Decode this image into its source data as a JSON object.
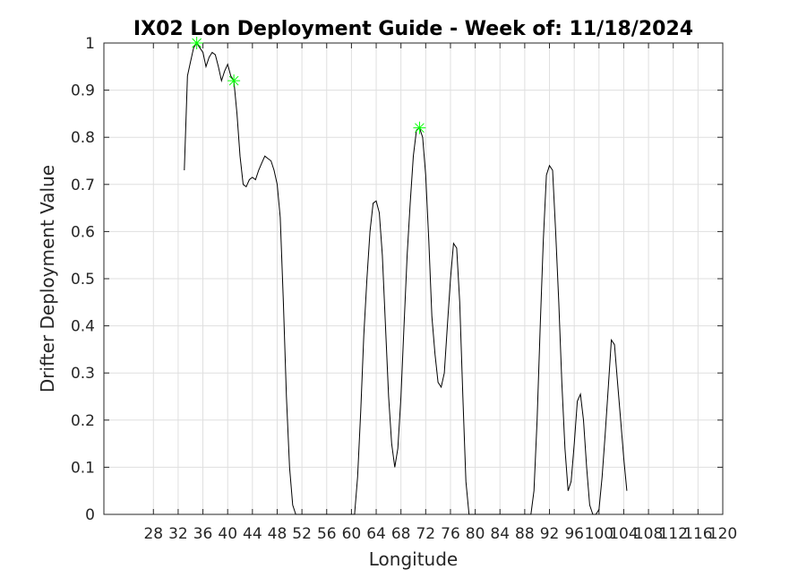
{
  "chart_data": {
    "type": "line",
    "title": "IX02 Lon Deployment Guide - Week of: 11/18/2024",
    "xlabel": "Longitude",
    "ylabel": "Drifter Deployment Value",
    "xlim": [
      20,
      120
    ],
    "ylim": [
      0,
      1
    ],
    "grid": true,
    "xticks": [
      28,
      32,
      36,
      40,
      44,
      48,
      52,
      56,
      60,
      64,
      68,
      72,
      76,
      80,
      84,
      88,
      92,
      96,
      100,
      104,
      108,
      112,
      116,
      120
    ],
    "xtick_labels": [
      "28",
      "32",
      "36",
      "40",
      "44",
      "48",
      "52",
      "56",
      "60",
      "64",
      "68",
      "72",
      "76",
      "80",
      "84",
      "88",
      "92",
      "96",
      "100",
      "104",
      "108",
      "112",
      "116",
      "120"
    ],
    "yticks": [
      0,
      0.1,
      0.2,
      0.3,
      0.4,
      0.5,
      0.6,
      0.7,
      0.8,
      0.9,
      1
    ],
    "ytick_labels": [
      "0",
      "0.1",
      "0.2",
      "0.3",
      "0.4",
      "0.5",
      "0.6",
      "0.7",
      "0.8",
      "0.9",
      "1"
    ],
    "line_color": "#000000",
    "marker_color": "#00ff00",
    "series": [
      {
        "values": [
          [
            33.0,
            0.73
          ],
          [
            33.5,
            0.93
          ],
          [
            34.0,
            0.96
          ],
          [
            34.5,
            0.99
          ],
          [
            35.0,
            1.0
          ],
          [
            35.5,
            0.99
          ],
          [
            36.0,
            0.98
          ],
          [
            36.5,
            0.95
          ],
          [
            37.0,
            0.97
          ],
          [
            37.5,
            0.98
          ],
          [
            38.0,
            0.975
          ],
          [
            38.5,
            0.95
          ],
          [
            39.0,
            0.92
          ],
          [
            39.5,
            0.94
          ],
          [
            40.0,
            0.955
          ],
          [
            40.5,
            0.93
          ],
          [
            41.0,
            0.92
          ],
          [
            41.5,
            0.85
          ],
          [
            42.0,
            0.76
          ],
          [
            42.5,
            0.7
          ],
          [
            43.0,
            0.695
          ],
          [
            43.5,
            0.71
          ],
          [
            44.0,
            0.715
          ],
          [
            44.5,
            0.71
          ],
          [
            45.0,
            0.73
          ],
          [
            45.5,
            0.745
          ],
          [
            46.0,
            0.76
          ],
          [
            46.5,
            0.755
          ],
          [
            47.0,
            0.75
          ],
          [
            47.5,
            0.73
          ],
          [
            48.0,
            0.7
          ],
          [
            48.5,
            0.63
          ],
          [
            49.0,
            0.45
          ],
          [
            49.5,
            0.25
          ],
          [
            50.0,
            0.1
          ],
          [
            50.5,
            0.02
          ],
          [
            51.0,
            0.0
          ],
          [
            52.0,
            0.0
          ],
          [
            56.0,
            0.0
          ],
          [
            60.0,
            0.0
          ],
          [
            60.5,
            0.0
          ],
          [
            61.0,
            0.08
          ],
          [
            61.5,
            0.22
          ],
          [
            62.0,
            0.38
          ],
          [
            62.5,
            0.5
          ],
          [
            63.0,
            0.6
          ],
          [
            63.5,
            0.66
          ],
          [
            64.0,
            0.665
          ],
          [
            64.5,
            0.64
          ],
          [
            65.0,
            0.55
          ],
          [
            65.5,
            0.4
          ],
          [
            66.0,
            0.25
          ],
          [
            66.5,
            0.15
          ],
          [
            67.0,
            0.1
          ],
          [
            67.5,
            0.14
          ],
          [
            68.0,
            0.25
          ],
          [
            68.5,
            0.4
          ],
          [
            69.0,
            0.55
          ],
          [
            69.5,
            0.66
          ],
          [
            70.0,
            0.76
          ],
          [
            70.5,
            0.815
          ],
          [
            71.0,
            0.82
          ],
          [
            71.5,
            0.8
          ],
          [
            72.0,
            0.72
          ],
          [
            72.5,
            0.58
          ],
          [
            73.0,
            0.42
          ],
          [
            73.5,
            0.34
          ],
          [
            74.0,
            0.28
          ],
          [
            74.5,
            0.27
          ],
          [
            75.0,
            0.3
          ],
          [
            75.5,
            0.4
          ],
          [
            76.0,
            0.5
          ],
          [
            76.5,
            0.575
          ],
          [
            77.0,
            0.565
          ],
          [
            77.5,
            0.45
          ],
          [
            78.0,
            0.25
          ],
          [
            78.5,
            0.07
          ],
          [
            79.0,
            0.0
          ],
          [
            80.0,
            0.0
          ],
          [
            84.0,
            0.0
          ],
          [
            88.0,
            0.0
          ],
          [
            89.0,
            0.0
          ],
          [
            89.5,
            0.05
          ],
          [
            90.0,
            0.2
          ],
          [
            90.5,
            0.4
          ],
          [
            91.0,
            0.58
          ],
          [
            91.5,
            0.72
          ],
          [
            92.0,
            0.74
          ],
          [
            92.5,
            0.73
          ],
          [
            93.0,
            0.6
          ],
          [
            93.5,
            0.45
          ],
          [
            94.0,
            0.28
          ],
          [
            94.5,
            0.14
          ],
          [
            95.0,
            0.05
          ],
          [
            95.5,
            0.07
          ],
          [
            96.0,
            0.15
          ],
          [
            96.5,
            0.24
          ],
          [
            97.0,
            0.255
          ],
          [
            97.5,
            0.2
          ],
          [
            98.0,
            0.1
          ],
          [
            98.5,
            0.02
          ],
          [
            99.0,
            0.0
          ],
          [
            99.5,
            0.0
          ],
          [
            100.0,
            0.01
          ],
          [
            100.5,
            0.08
          ],
          [
            101.0,
            0.17
          ],
          [
            101.5,
            0.27
          ],
          [
            102.0,
            0.37
          ],
          [
            102.5,
            0.36
          ],
          [
            103.0,
            0.28
          ],
          [
            103.5,
            0.2
          ],
          [
            104.0,
            0.12
          ],
          [
            104.5,
            0.05
          ]
        ],
        "markers": [
          [
            35.0,
            1.0
          ],
          [
            41.0,
            0.92
          ],
          [
            71.0,
            0.82
          ]
        ]
      }
    ]
  }
}
